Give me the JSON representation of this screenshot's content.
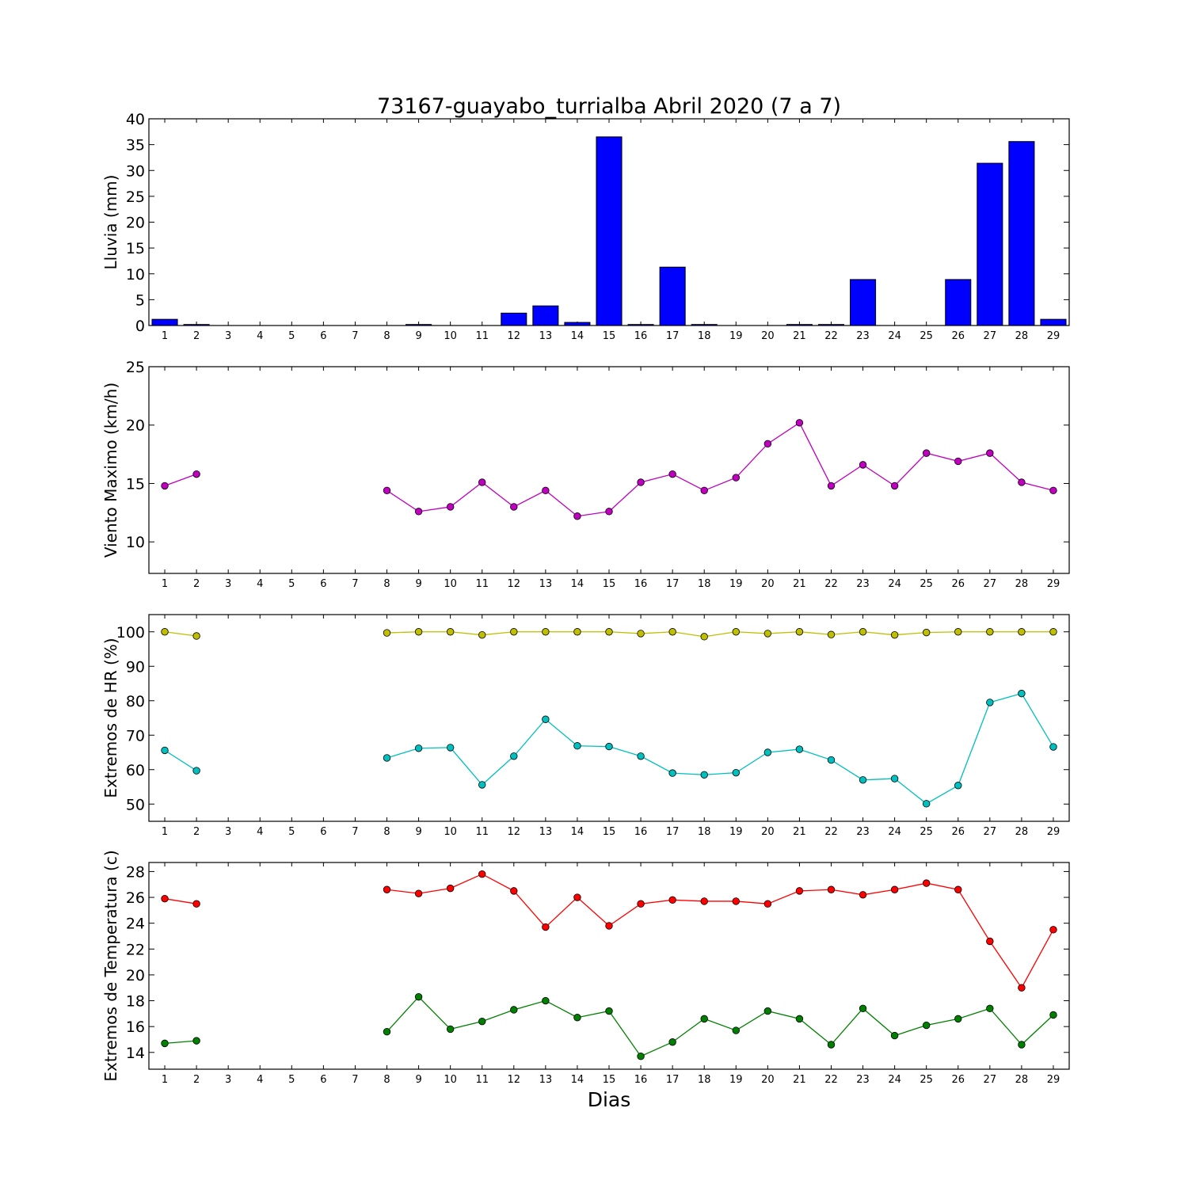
{
  "chart_data": {
    "title": "73167-guayabo_turrialba Abril 2020  (7 a 7)",
    "xlabel": "Dias",
    "days": [
      1,
      2,
      3,
      4,
      5,
      6,
      7,
      8,
      9,
      10,
      11,
      12,
      13,
      14,
      15,
      16,
      17,
      18,
      19,
      20,
      21,
      22,
      23,
      24,
      25,
      26,
      27,
      28,
      29
    ],
    "panels": [
      {
        "id": "rain",
        "type": "bar",
        "ylabel": "Lluvia (mm)",
        "ylim": [
          0,
          40
        ],
        "yticks": [
          0,
          5,
          10,
          15,
          20,
          25,
          30,
          35,
          40
        ],
        "series": [
          {
            "color": "#0000ff",
            "values": [
              1.2,
              0.2,
              0,
              0,
              0,
              0,
              0,
              0,
              0.2,
              0,
              0,
              2.4,
              3.8,
              0.6,
              36.5,
              0.2,
              11.3,
              0.2,
              0,
              0,
              0.2,
              0.2,
              8.9,
              0,
              0,
              8.9,
              31.4,
              35.6,
              1.2
            ]
          }
        ]
      },
      {
        "id": "wind",
        "type": "line",
        "ylabel": "Viento Maximo (km/h)",
        "ylim": [
          7.3,
          25
        ],
        "yticks": [
          10,
          15,
          20,
          25
        ],
        "series": [
          {
            "color": "#bf00bf",
            "values": [
              14.8,
              15.8,
              null,
              null,
              null,
              null,
              null,
              14.4,
              12.6,
              13.0,
              15.1,
              13.0,
              14.4,
              12.2,
              12.6,
              15.1,
              15.8,
              14.4,
              15.5,
              18.4,
              20.2,
              14.8,
              16.6,
              14.8,
              17.6,
              16.9,
              17.6,
              15.1,
              14.4
            ]
          }
        ]
      },
      {
        "id": "humidity",
        "type": "line",
        "ylabel": "Extremos de HR (%)",
        "ylim": [
          45,
          105
        ],
        "yticks": [
          50,
          60,
          70,
          80,
          90,
          100
        ],
        "series": [
          {
            "color": "#bfbf00",
            "values": [
              100,
              98.8,
              null,
              null,
              null,
              null,
              null,
              99.7,
              100,
              100,
              99.1,
              100,
              100,
              100,
              100,
              99.5,
              100,
              98.6,
              100,
              99.5,
              100,
              99.2,
              100,
              99.1,
              99.8,
              100,
              100,
              100,
              100
            ]
          },
          {
            "color": "#00bfbf",
            "values": [
              65.6,
              59.7,
              null,
              null,
              null,
              null,
              null,
              63.4,
              66.2,
              66.4,
              55.6,
              63.9,
              74.6,
              66.9,
              66.7,
              63.9,
              59.0,
              58.5,
              59.1,
              65.0,
              65.9,
              62.8,
              57.0,
              57.4,
              50.1,
              55.4,
              79.5,
              82.1,
              66.6
            ]
          }
        ]
      },
      {
        "id": "temperature",
        "type": "line",
        "ylabel": "Extremos de Temperatura (c)",
        "ylim": [
          12.7,
          28.7
        ],
        "yticks": [
          14,
          16,
          18,
          20,
          22,
          24,
          26,
          28
        ],
        "series": [
          {
            "color": "#ff0000",
            "values": [
              25.9,
              25.5,
              null,
              null,
              null,
              null,
              null,
              26.6,
              26.3,
              26.7,
              27.8,
              26.5,
              23.7,
              26.0,
              23.8,
              25.5,
              25.8,
              25.7,
              25.7,
              25.5,
              26.5,
              26.6,
              26.2,
              26.6,
              27.1,
              26.6,
              22.6,
              19.0,
              23.5
            ]
          },
          {
            "color": "#008000",
            "values": [
              14.7,
              14.9,
              null,
              null,
              null,
              null,
              null,
              15.6,
              18.3,
              15.8,
              16.4,
              17.3,
              18.0,
              16.7,
              17.2,
              13.7,
              14.8,
              16.6,
              15.7,
              17.2,
              16.6,
              14.6,
              17.4,
              15.3,
              16.1,
              16.6,
              17.4,
              14.6,
              16.9
            ]
          }
        ]
      }
    ]
  }
}
